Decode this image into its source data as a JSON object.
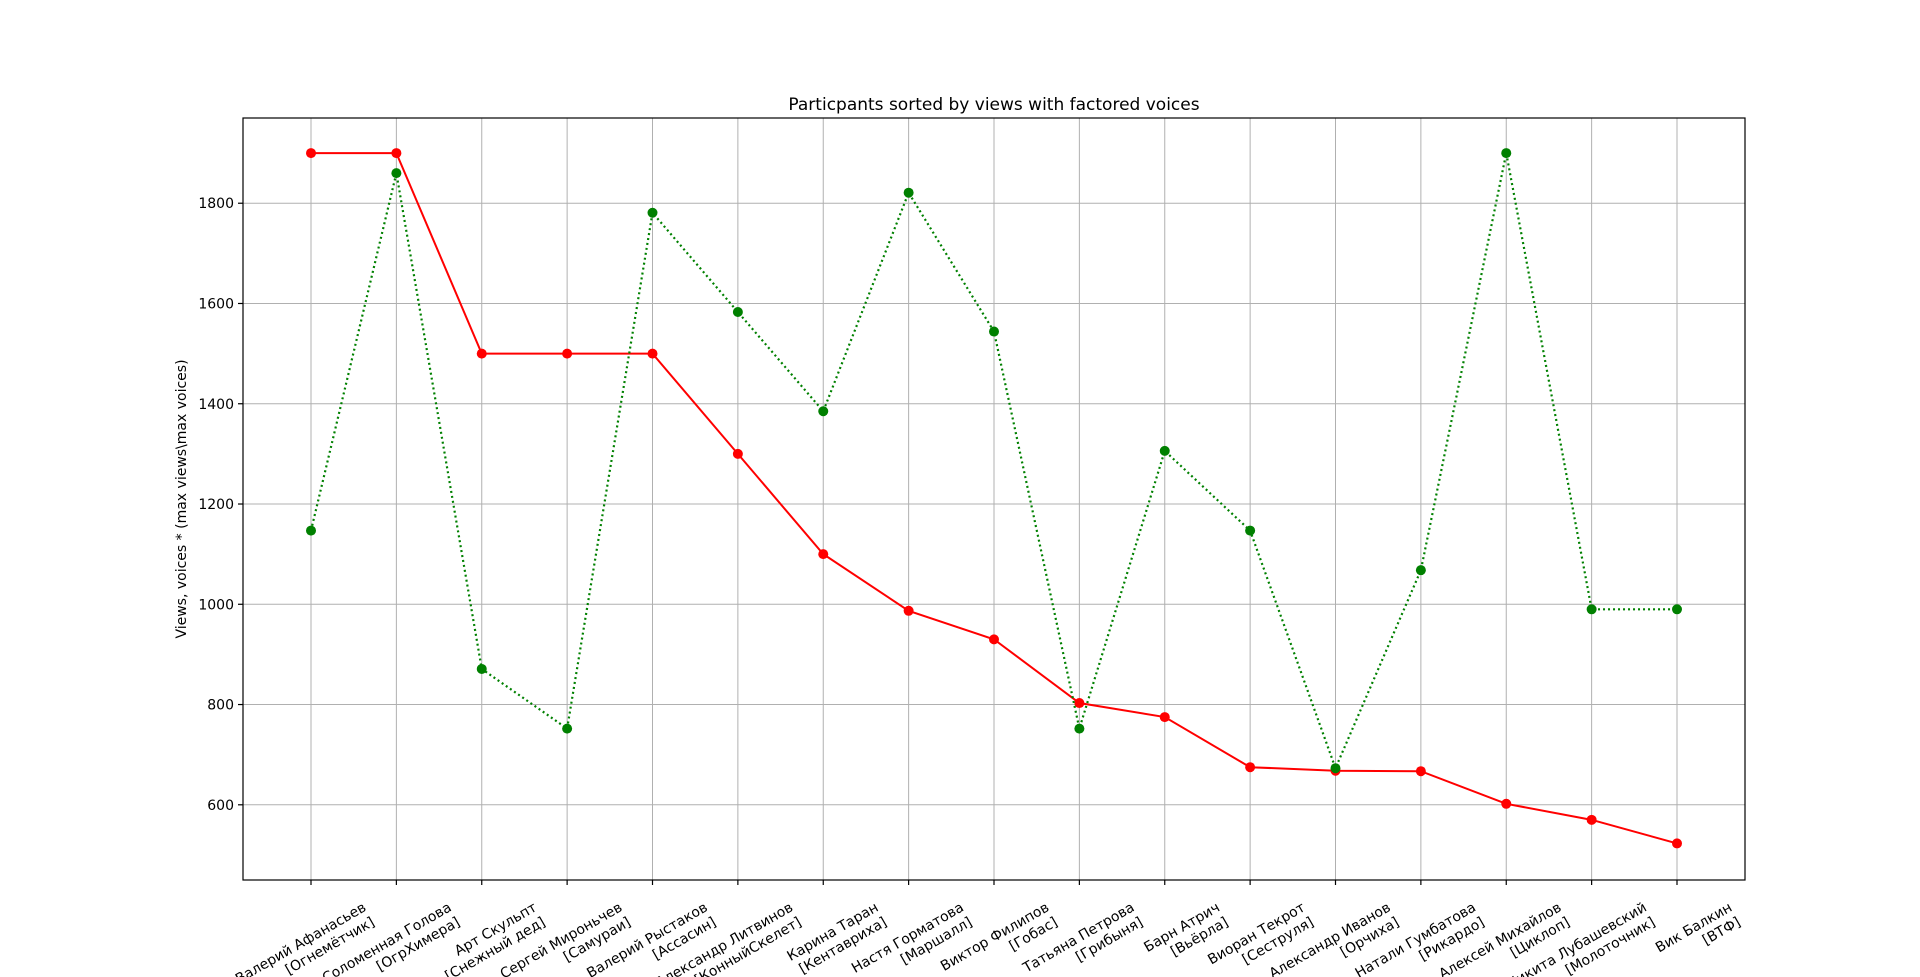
{
  "chart_data": {
    "type": "line",
    "title": "Particpants sorted by views with factored voices",
    "xlabel": "",
    "ylabel": "Views, voices * (max views\\max voices)",
    "ylim": [
      450,
      1970
    ],
    "yticks": [
      600,
      800,
      1000,
      1200,
      1400,
      1600,
      1800
    ],
    "grid": true,
    "categories": [
      [
        "Валерий Афанасьев",
        "[Огнемётчик]"
      ],
      [
        "Соломенная Голова",
        "[ОгрХимера]"
      ],
      [
        "Арт Скульпт",
        "[Снежный дед]"
      ],
      [
        "Сергей Мироньчев",
        "[Самураи]"
      ],
      [
        "Валерий Рыстаков",
        "[Ассасин]"
      ],
      [
        "Александр Литвинов",
        "[КонныйСкелет]"
      ],
      [
        "Карина Таран",
        "[Кентавриха]"
      ],
      [
        "Настя Горматова",
        "[Маршалл]"
      ],
      [
        "Виктор Филипов",
        "[Гобас]"
      ],
      [
        "Татьяна Петрова",
        "[Грибыня]"
      ],
      [
        "Барн Атрич",
        "[Вьёрла]"
      ],
      [
        "Виоран Текрот",
        "[Сеструля]"
      ],
      [
        "Александр Иванов",
        "[Орчиха]"
      ],
      [
        "Натали Гумбатова",
        "[Рикардо]"
      ],
      [
        "Алексей Михайлов",
        "[Циклоп]"
      ],
      [
        "Никита Лубашевский",
        "[Молоточник]"
      ],
      [
        "Вик Балкин",
        "[ВТФ]"
      ]
    ],
    "series": [
      {
        "color": "#ff0000",
        "style": "solid",
        "values": [
          1900,
          1900,
          1500,
          1500,
          1500,
          1300,
          1100,
          987,
          930,
          803,
          775,
          675,
          668,
          667,
          602,
          570,
          523
        ]
      },
      {
        "color": "#008000",
        "style": "dotted",
        "values": [
          1147,
          1860,
          871,
          752,
          1781,
          1583,
          1385,
          1821,
          1544,
          752,
          1306,
          1147,
          673,
          1068,
          1900,
          990,
          990
        ]
      }
    ]
  }
}
